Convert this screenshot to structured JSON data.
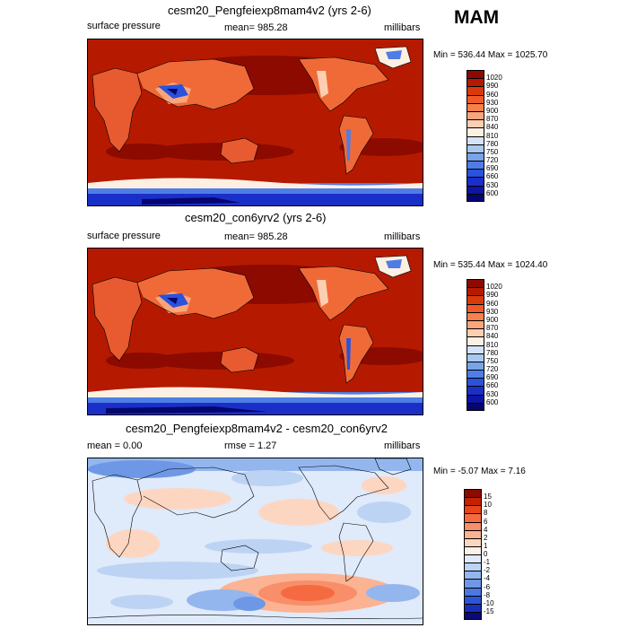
{
  "season": "MAM",
  "panels": [
    {
      "title": "cesm20_Pengfeiexp8mam4v2 (yrs 2-6)",
      "left_label": "surface pressure",
      "center_label": "mean= 985.28",
      "right_label": "millibars",
      "minmax": "Min = 536.44 Max = 1025.70"
    },
    {
      "title": "cesm20_con6yrv2 (yrs 2-6)",
      "left_label": "surface pressure",
      "center_label": "mean= 985.28",
      "right_label": "millibars",
      "minmax": "Min = 535.44 Max = 1024.40"
    },
    {
      "title": "cesm20_Pengfeiexp8mam4v2 - cesm20_con6yrv2",
      "left_label": "mean =   0.00",
      "center_label": "rmse =   1.27",
      "right_label": "millibars",
      "minmax": "Min =  -5.07 Max =   7.16"
    }
  ],
  "legends": {
    "absolute": {
      "levels": [
        "1020",
        "990",
        "960",
        "930",
        "900",
        "870",
        "840",
        "810",
        "780",
        "750",
        "720",
        "690",
        "660",
        "630",
        "600"
      ],
      "colors": [
        "#8c0a00",
        "#b51a00",
        "#d93a0a",
        "#f05a28",
        "#f7804c",
        "#fba57c",
        "#fdcfb2",
        "#fdf0e2",
        "#d4e3f7",
        "#a8c8f0",
        "#7aa4ea",
        "#4e7de6",
        "#2a52dc",
        "#1a2fc8",
        "#0d14a6",
        "#05066e"
      ]
    },
    "difference": {
      "levels": [
        "15",
        "10",
        "8",
        "6",
        "4",
        "2",
        "1",
        "0",
        "-1",
        "-2",
        "-4",
        "-6",
        "-8",
        "-10",
        "-15"
      ],
      "colors": [
        "#8c0a00",
        "#c42200",
        "#e8461a",
        "#f56a40",
        "#f98e6a",
        "#fbb393",
        "#fdd6c2",
        "#fdf0e6",
        "#dfeafa",
        "#bcd3f4",
        "#94b6ee",
        "#6e97e6",
        "#4a78e0",
        "#2a55d4",
        "#1a2fb8",
        "#0a0a78"
      ]
    }
  }
}
